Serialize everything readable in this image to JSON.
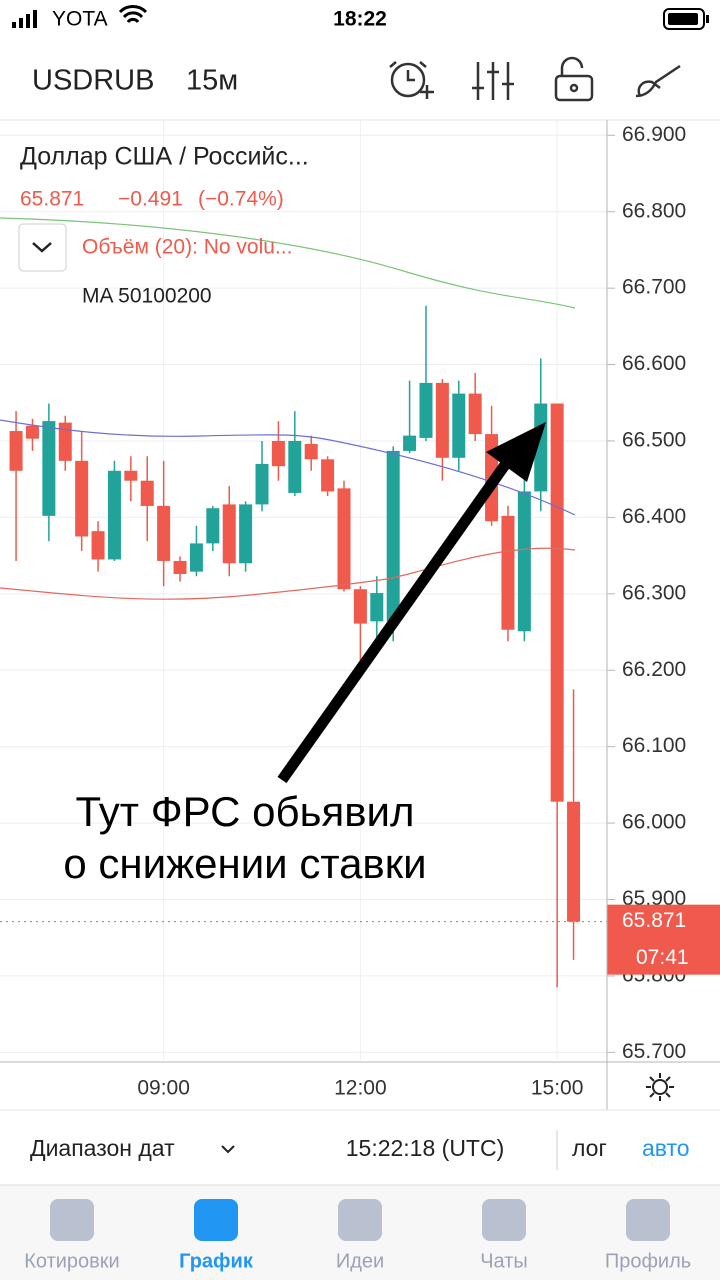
{
  "status_bar": {
    "carrier": "YOTA",
    "time": "18:22"
  },
  "toolbar": {
    "symbol": "USDRUB",
    "interval": "15м"
  },
  "legend": {
    "name": "Доллар США / Российс...",
    "last": "65.871",
    "change": "−0.491",
    "change_pct": "(−0.74%)",
    "volume": "Объём (20): No volu...",
    "ma": "MA 50100200"
  },
  "annotation": {
    "line1": "Тут ФРС обьявил",
    "line2": "о снижении ставки"
  },
  "chart_data": {
    "type": "candlestick",
    "up_color": "#22a39a",
    "down_color": "#ef5a4c",
    "open": [
      66.513,
      66.52,
      66.402,
      66.524,
      66.474,
      66.382,
      66.345,
      66.461,
      66.448,
      66.415,
      66.343,
      66.329,
      66.366,
      66.417,
      66.34,
      66.417,
      66.5,
      66.432,
      66.496,
      66.476,
      66.438,
      66.306,
      66.264,
      66.264,
      66.487,
      66.504,
      66.576,
      66.478,
      66.562,
      66.509,
      66.402,
      66.251,
      66.434,
      66.549,
      66.028
    ],
    "high": [
      66.539,
      66.529,
      66.549,
      66.533,
      66.513,
      66.395,
      66.474,
      66.48,
      66.48,
      66.474,
      66.349,
      66.389,
      66.415,
      66.441,
      66.421,
      66.5,
      66.526,
      66.539,
      66.507,
      66.48,
      66.448,
      66.31,
      66.323,
      66.493,
      66.579,
      66.677,
      66.581,
      66.579,
      66.589,
      66.546,
      66.415,
      66.454,
      66.608,
      66.549,
      66.175
    ],
    "low": [
      66.343,
      66.487,
      66.369,
      66.461,
      66.356,
      66.329,
      66.343,
      66.421,
      66.369,
      66.31,
      66.316,
      66.323,
      66.356,
      66.323,
      66.329,
      66.408,
      66.448,
      66.428,
      66.461,
      66.428,
      66.303,
      66.205,
      66.238,
      66.238,
      66.484,
      66.5,
      66.448,
      66.461,
      66.5,
      66.389,
      66.238,
      66.238,
      66.408,
      65.785,
      65.821
    ],
    "close": [
      66.461,
      66.503,
      66.526,
      66.474,
      66.375,
      66.345,
      66.461,
      66.448,
      66.415,
      66.343,
      66.326,
      66.366,
      66.412,
      66.34,
      66.417,
      66.47,
      66.467,
      66.5,
      66.476,
      66.434,
      66.306,
      66.261,
      66.301,
      66.487,
      66.507,
      66.576,
      66.478,
      66.562,
      66.509,
      66.395,
      66.253,
      66.434,
      66.549,
      66.028,
      65.871
    ],
    "ylim": [
      65.69,
      66.92
    ],
    "yticks": [
      {
        "value": 66.9,
        "label": "66.900"
      },
      {
        "value": 66.8,
        "label": "66.800"
      },
      {
        "value": 66.7,
        "label": "66.700"
      },
      {
        "value": 66.6,
        "label": "66.600"
      },
      {
        "value": 66.5,
        "label": "66.500"
      },
      {
        "value": 66.4,
        "label": "66.400"
      },
      {
        "value": 66.3,
        "label": "66.300"
      },
      {
        "value": 66.2,
        "label": "66.200"
      },
      {
        "value": 66.1,
        "label": "66.100"
      },
      {
        "value": 66.0,
        "label": "66.000"
      },
      {
        "value": 65.9,
        "label": "65.900"
      },
      {
        "value": 65.8,
        "label": "65.800"
      },
      {
        "value": 65.7,
        "label": "65.700"
      }
    ],
    "xlim": [
      -0.98,
      36.04
    ],
    "xticks": [
      {
        "value": 9,
        "label": "09:00"
      },
      {
        "value": 21,
        "label": "12:00"
      },
      {
        "value": 33,
        "label": "15:00"
      }
    ],
    "last_price": {
      "value": 65.871,
      "label": "65.871"
    },
    "countdown": "07:41"
  },
  "bottom_bar": {
    "range": "Диапазон дат",
    "clock": "15:22:18 (UTC)",
    "log": "лог",
    "auto": "авто"
  },
  "tabs": [
    "Котировки",
    "График",
    "Идеи",
    "Чаты",
    "Профиль"
  ]
}
